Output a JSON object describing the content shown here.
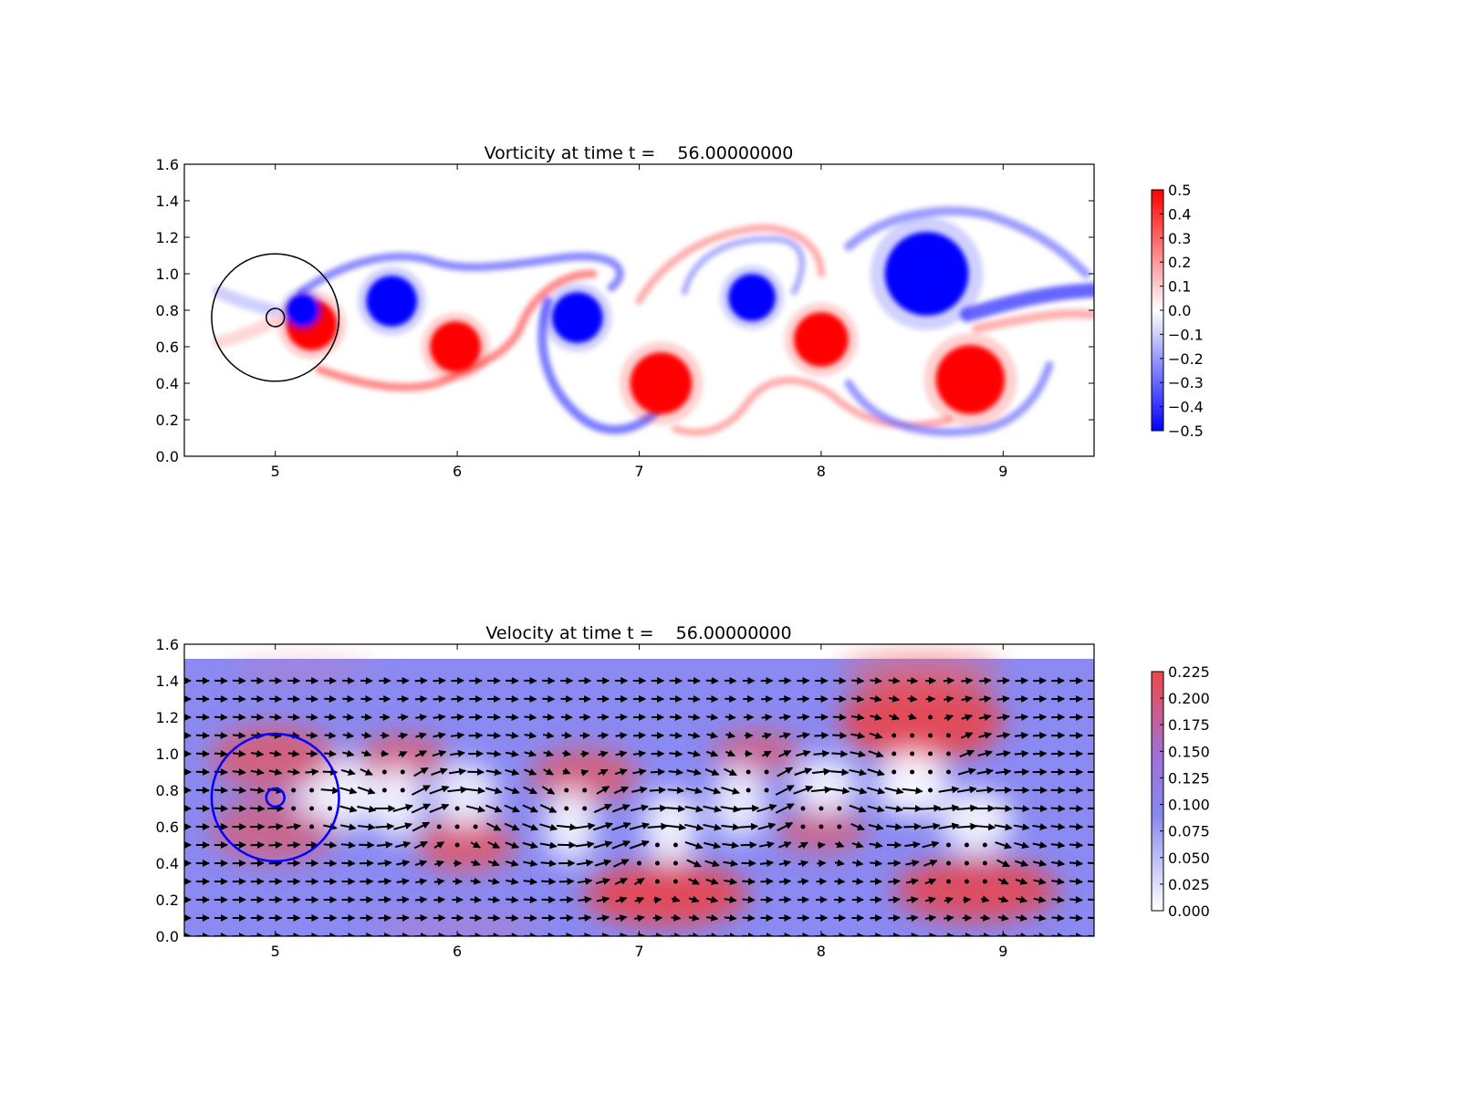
{
  "chart_data": [
    {
      "type": "heatmap",
      "title": "Vorticity at time t =    56.00000000",
      "xlim": [
        4.5,
        9.5
      ],
      "ylim": [
        0.0,
        1.6
      ],
      "xticks": [
        "5",
        "6",
        "7",
        "8",
        "9"
      ],
      "yticks": [
        "0.0",
        "0.2",
        "0.4",
        "0.6",
        "0.8",
        "1.0",
        "1.2",
        "1.4",
        "1.6"
      ],
      "grid": false,
      "colorscale": {
        "low": "#0000ff",
        "mid": "#ffffff",
        "high": "#ff0000"
      },
      "colorbar": {
        "min": -0.5,
        "max": 0.5,
        "ticks": [
          "0.5",
          "0.4",
          "0.3",
          "0.2",
          "0.1",
          "0.0",
          "−0.1",
          "−0.2",
          "−0.3",
          "−0.4",
          "−0.5"
        ]
      },
      "vortices": [
        {
          "x": 5.2,
          "y": 0.72,
          "r": 0.14,
          "value": 0.5
        },
        {
          "x": 5.15,
          "y": 0.8,
          "r": 0.09,
          "value": -0.5
        },
        {
          "x": 5.64,
          "y": 0.85,
          "r": 0.14,
          "value": -0.5
        },
        {
          "x": 5.99,
          "y": 0.6,
          "r": 0.14,
          "value": 0.5
        },
        {
          "x": 6.66,
          "y": 0.76,
          "r": 0.14,
          "value": -0.5
        },
        {
          "x": 7.12,
          "y": 0.4,
          "r": 0.17,
          "value": 0.5
        },
        {
          "x": 7.62,
          "y": 0.87,
          "r": 0.13,
          "value": -0.5
        },
        {
          "x": 8.0,
          "y": 0.64,
          "r": 0.15,
          "value": 0.5
        },
        {
          "x": 8.58,
          "y": 1.0,
          "r": 0.23,
          "value": -0.5
        },
        {
          "x": 8.82,
          "y": 0.42,
          "r": 0.19,
          "value": 0.5
        }
      ],
      "circles": [
        {
          "x": 5.0,
          "y": 0.76,
          "r": 0.35,
          "color": "#000000"
        },
        {
          "x": 5.0,
          "y": 0.76,
          "r": 0.05,
          "color": "#000000"
        }
      ]
    },
    {
      "type": "heatmap",
      "title": "Velocity at time t =    56.00000000",
      "xlim": [
        4.5,
        9.5
      ],
      "ylim": [
        0.0,
        1.6
      ],
      "xticks": [
        "5",
        "6",
        "7",
        "8",
        "9"
      ],
      "yticks": [
        "0.0",
        "0.2",
        "0.4",
        "0.6",
        "0.8",
        "1.0",
        "1.2",
        "1.4",
        "1.6"
      ],
      "grid": false,
      "data_ylim": [
        0.0,
        1.52
      ],
      "colorscale": {
        "low": "#ffffff",
        "mid": "#8080f0",
        "high": "#f04040"
      },
      "colorbar": {
        "min": 0.0,
        "max": 0.23,
        "ticks": [
          "0.225",
          "0.200",
          "0.175",
          "0.150",
          "0.125",
          "0.100",
          "0.075",
          "0.050",
          "0.025",
          "0.000"
        ]
      },
      "circles": [
        {
          "x": 5.0,
          "y": 0.76,
          "r": 0.35,
          "color": "#0000ff"
        },
        {
          "x": 5.0,
          "y": 0.76,
          "r": 0.05,
          "color": "#0000ff"
        }
      ]
    }
  ]
}
